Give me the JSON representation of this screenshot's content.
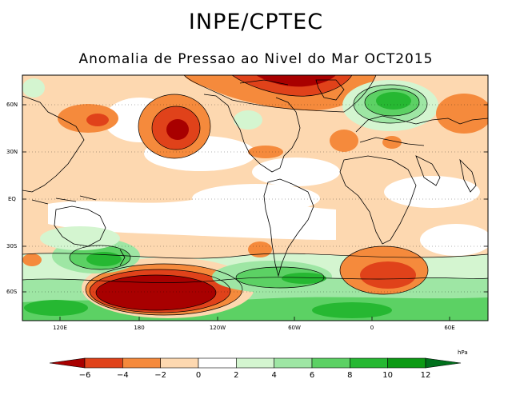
{
  "header": {
    "title": "INPE/CPTEC",
    "subtitle": "Anomalia de Pressao ao Nivel do Mar OCT2015"
  },
  "map": {
    "lat_labels": [
      "60N",
      "30N",
      "EQ",
      "30S",
      "60S"
    ],
    "lon_labels": [
      "120E",
      "180",
      "120W",
      "60W",
      "0",
      "60E"
    ]
  },
  "colorbar": {
    "unit": "hPa",
    "ticks": [
      "−6",
      "−4",
      "−2",
      "0",
      "2",
      "4",
      "6",
      "8",
      "10",
      "12"
    ],
    "colors": [
      "#a80000",
      "#e0421a",
      "#f58a3c",
      "#fdd8b0",
      "#ffffff",
      "#d4f5d0",
      "#9ee6a4",
      "#5cd164",
      "#26b832",
      "#0c9a14",
      "#00701c"
    ]
  }
}
